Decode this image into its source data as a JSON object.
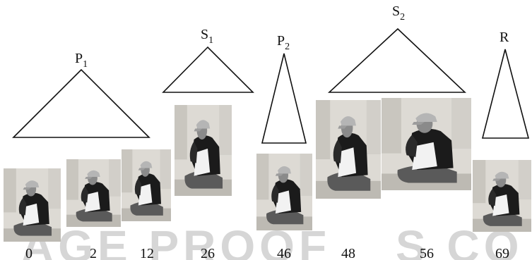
{
  "triangles": [
    {
      "id": "P1",
      "base": "P",
      "sub": "1"
    },
    {
      "id": "S1",
      "base": "S",
      "sub": "1"
    },
    {
      "id": "P2",
      "base": "P",
      "sub": "2"
    },
    {
      "id": "S2",
      "base": "S",
      "sub": "2"
    },
    {
      "id": "R",
      "base": "R",
      "sub": ""
    }
  ],
  "frames": [
    {
      "number": "0"
    },
    {
      "number": "2"
    },
    {
      "number": "12"
    },
    {
      "number": "26"
    },
    {
      "number": "46"
    },
    {
      "number": "48"
    },
    {
      "number": "56"
    },
    {
      "number": "69"
    }
  ],
  "watermark": {
    "left": "AGE PROOF",
    "right": "S CO"
  },
  "colors": {
    "line": "#111111",
    "photo_bg": "#e9e7e3",
    "jacket_dark": "#1a1a1a",
    "jacket_light": "#f2f2f2",
    "skin": "#8a8a8a",
    "cap": "#b5b5b5",
    "pants": "#555555",
    "watermark": "#d6d6d6"
  }
}
